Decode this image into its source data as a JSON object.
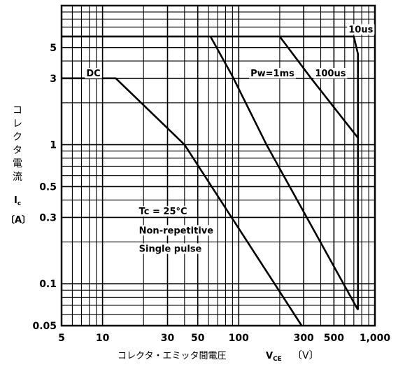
{
  "chart_data": {
    "type": "line",
    "title": "",
    "xlabel_jp": "コレクタ・エミッタ間電圧",
    "xlabel_sym": "V",
    "xlabel_sub": "CE",
    "xlabel_unit": "〔V〕",
    "ylabel_jp": [
      "コ",
      "レ",
      "ク",
      "タ",
      "電",
      "流"
    ],
    "ylabel_sym": "I",
    "ylabel_sub": "c",
    "ylabel_unit": "〔A〕",
    "xscale": "log",
    "yscale": "log",
    "xlim": [
      5,
      1000
    ],
    "ylim": [
      0.05,
      10
    ],
    "grid": true,
    "x_ticks": [
      {
        "value": 5,
        "label": "5"
      },
      {
        "value": 10,
        "label": "10"
      },
      {
        "value": 30,
        "label": "30"
      },
      {
        "value": 50,
        "label": "50"
      },
      {
        "value": 100,
        "label": "100"
      },
      {
        "value": 300,
        "label": "300"
      },
      {
        "value": 500,
        "label": "500"
      },
      {
        "value": 1000,
        "label": "1,000"
      }
    ],
    "y_ticks": [
      {
        "value": 5,
        "label": "5"
      },
      {
        "value": 3,
        "label": "3"
      },
      {
        "value": 1,
        "label": "1"
      },
      {
        "value": 0.5,
        "label": "0.5"
      },
      {
        "value": 0.3,
        "label": "0.3"
      },
      {
        "value": 0.1,
        "label": "0.1"
      },
      {
        "value": 0.05,
        "label": "0.05"
      }
    ],
    "series": [
      {
        "name": "DC",
        "points": [
          [
            5,
            3
          ],
          [
            12.5,
            3
          ],
          [
            40,
            1
          ],
          [
            290,
            0.05
          ]
        ]
      },
      {
        "name": "Pw=1ms",
        "points": [
          [
            62,
            6
          ],
          [
            90,
            3.1
          ],
          [
            160,
            1
          ],
          [
            750,
            0.065
          ]
        ]
      },
      {
        "name": "100us",
        "points": [
          [
            200,
            6
          ],
          [
            340,
            3
          ],
          [
            750,
            1.12
          ]
        ]
      },
      {
        "name": "10us",
        "points": [
          [
            5,
            6
          ],
          [
            700,
            6
          ],
          [
            750,
            4.5
          ],
          [
            750,
            0.065
          ]
        ]
      }
    ],
    "annotations": [
      {
        "text": "DC",
        "x": 7.6,
        "y": 3.1
      },
      {
        "text": "Pw=1ms",
        "x": 122,
        "y": 3.1
      },
      {
        "text": "100us",
        "x": 363,
        "y": 3.1
      },
      {
        "text": "10us",
        "x": 640,
        "y": 6.4
      },
      {
        "text": "Tc = 25°C",
        "x": 18.5,
        "y": 0.315
      },
      {
        "text": "Non-repetitive",
        "x": 18.5,
        "y": 0.23
      },
      {
        "text": "Single pulse",
        "x": 18.5,
        "y": 0.17
      }
    ]
  }
}
